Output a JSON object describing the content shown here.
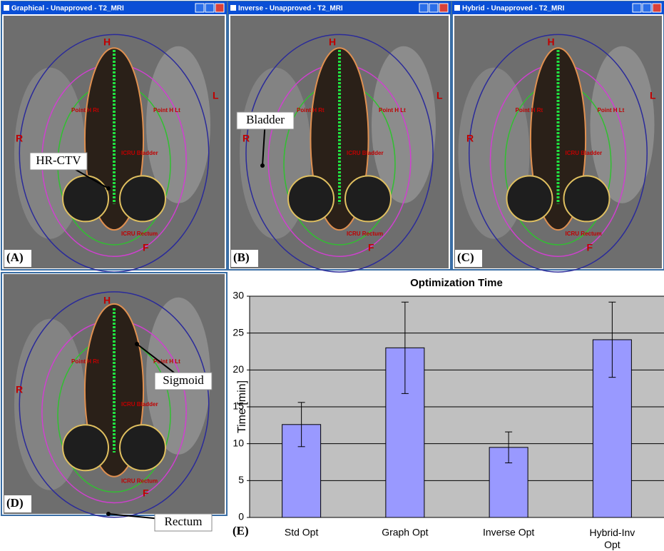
{
  "panels": [
    {
      "title": "Graphical - Unapproved - T2_MRI",
      "label": "(A)",
      "markers": [
        "H",
        "L",
        "R",
        "F"
      ],
      "points": [
        "Point H Rt",
        "Point H Lt",
        "ICRU Bladder",
        "ICRU Rectum"
      ],
      "annotations": [
        "HR-CTV"
      ]
    },
    {
      "title": "Inverse - Unapproved - T2_MRI",
      "label": "(B)",
      "markers": [
        "H",
        "L",
        "R",
        "F"
      ],
      "points": [
        "Point H Rt",
        "Point H Lt",
        "ICRU Bladder",
        "ICRU Rectum"
      ],
      "annotations": [
        "Bladder"
      ]
    },
    {
      "title": "Hybrid - Unapproved - T2_MRI",
      "label": "(C)",
      "markers": [
        "H",
        "L",
        "R",
        "F"
      ],
      "points": [
        "Point H Rt",
        "Point H Lt",
        "ICRU Bladder",
        "ICRU Rectum"
      ],
      "annotations": []
    },
    {
      "label": "(D)",
      "markers": [
        "H",
        "R",
        "F"
      ],
      "points": [
        "Point H Rt",
        "Point H Lt",
        "ICRU Bladder",
        "ICRU Rectum"
      ],
      "annotations": [
        "Sigmoid",
        "Rectum"
      ]
    }
  ],
  "chart_data": {
    "type": "bar",
    "title": "Optimization Time",
    "ylabel": "Time [min]",
    "panel_label": "(E)",
    "categories": [
      "Std Opt",
      "Graph Opt",
      "Inverse Opt",
      "Hybrid-Inv Opt"
    ],
    "values": [
      12.6,
      23,
      9.5,
      24.1
    ],
    "errors": [
      3,
      6.2,
      2.1,
      5.1
    ],
    "color": "#9999ff",
    "background": "#c0c0c0",
    "ylim": [
      0,
      30
    ],
    "yticks": [
      0,
      5,
      10,
      15,
      20,
      25,
      30
    ],
    "grid": true
  }
}
